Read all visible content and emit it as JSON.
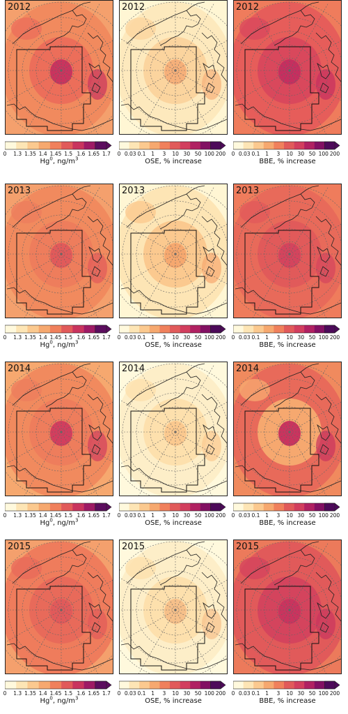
{
  "years": [
    "2012",
    "2013",
    "2014",
    "2015"
  ],
  "columns": [
    {
      "id": "hg",
      "label_main": "Hg",
      "label_sup": "0",
      "label_unit": ",  ng/m",
      "label_unit_sup": "3",
      "ticks": [
        "0",
        "1.3",
        "1.35",
        "1.4",
        "1.45",
        "1.5",
        "1.6",
        "1.65",
        "1.7"
      ]
    },
    {
      "id": "ose",
      "label_main": "OSE, % increase",
      "label_sup": "",
      "label_unit": "",
      "label_unit_sup": "",
      "ticks": [
        "0",
        "0.03",
        "0.1",
        "1",
        "3",
        "10",
        "30",
        "50",
        "100",
        "200"
      ]
    },
    {
      "id": "bbe",
      "label_main": "BBE, % increase",
      "label_sup": "",
      "label_unit": "",
      "label_unit_sup": "",
      "ticks": [
        "0",
        "0.03",
        "0.1",
        "1",
        "3",
        "10",
        "30",
        "50",
        "100",
        "200"
      ]
    }
  ],
  "colors": {
    "hg": [
      "#fff9dd",
      "#fde5b5",
      "#fbc98f",
      "#f6a86f",
      "#f0805c",
      "#e15a5a",
      "#c9345e",
      "#9e1a65",
      "#5c0d5e"
    ],
    "ose": [
      "#fff9dd",
      "#fde5b5",
      "#fbc98f",
      "#f6a86f",
      "#f0805c",
      "#e15a5a",
      "#d23e5e",
      "#b02162",
      "#821063",
      "#4d0a5a"
    ],
    "bbe": [
      "#fff9dd",
      "#fde5b5",
      "#fbc98f",
      "#f6a86f",
      "#f0805c",
      "#e15a5a",
      "#d23e5e",
      "#b02162",
      "#821063",
      "#4d0a5a"
    ]
  },
  "panel_fills": {
    "2012": {
      "hg": [
        "#f4a06d",
        "#f18a5e",
        "#ec6e5a",
        "#c9345e"
      ],
      "ose": [
        "#fff6d4",
        "#fde9bd",
        "#fbd49e",
        "#f6b07a"
      ],
      "bbe": [
        "#ef7c5c",
        "#e65d5a",
        "#d9485c",
        "#c52f5f"
      ]
    },
    "2013": {
      "hg": [
        "#f4a06d",
        "#f18a5e",
        "#ee7d5c",
        "#e15a5a"
      ],
      "ose": [
        "#fff6d4",
        "#fde5b5",
        "#fbc98f",
        "#f6a86f"
      ],
      "bbe": [
        "#ef7c5c",
        "#e86a5a",
        "#e15a5a",
        "#d4445d"
      ]
    },
    "2014": {
      "hg": [
        "#f6a86f",
        "#f18a5e",
        "#ee7d5c",
        "#d23e5e"
      ],
      "ose": [
        "#fff9dd",
        "#fdeec8",
        "#fde0ad",
        "#fbc98f"
      ],
      "bbe": [
        "#f08a5e",
        "#e86a5a",
        "#f6a86f",
        "#c9345e"
      ]
    },
    "2015": {
      "hg": [
        "#f4a06d",
        "#ef7c5c",
        "#e86a5a",
        "#e15a5a"
      ],
      "ose": [
        "#fff9dd",
        "#fdeec8",
        "#fde0ad",
        "#f6c08a"
      ],
      "bbe": [
        "#ec7a5b",
        "#e15a5a",
        "#d4445d",
        "#c9345e"
      ]
    }
  }
}
